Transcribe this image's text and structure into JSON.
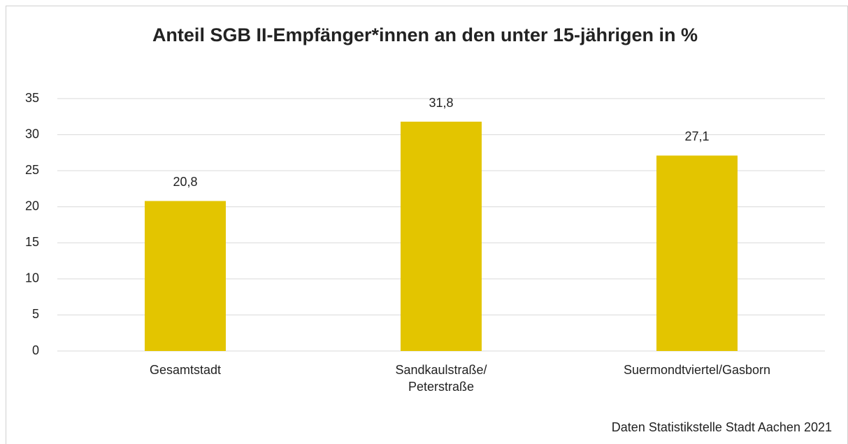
{
  "chart_data": {
    "type": "bar",
    "title": "Anteil SGB II-Empfänger*innen an den unter 15-jährigen in %",
    "categories": [
      "Gesamtstadt",
      "Sandkaulstraße/\nPeterstraße",
      "Suermondtviertel/Gasborn"
    ],
    "values": [
      20.8,
      31.8,
      27.1
    ],
    "value_labels": [
      "20,8",
      "31,8",
      "27,1"
    ],
    "color": "#e3c500",
    "ylim": [
      0,
      35
    ],
    "yticks": [
      0,
      5,
      10,
      15,
      20,
      25,
      30,
      35
    ],
    "grid": true,
    "source": "Daten Statistikstelle Stadt Aachen 2021"
  }
}
